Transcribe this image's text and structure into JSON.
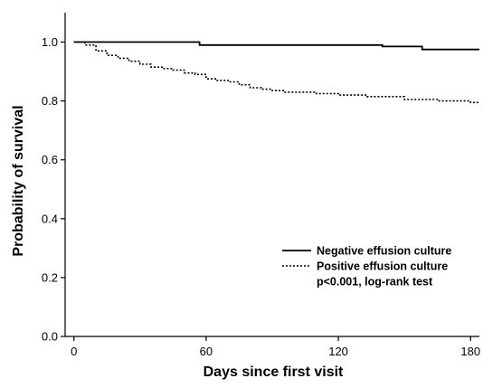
{
  "chart_data": {
    "type": "line",
    "xlabel": "Days since first visit",
    "ylabel": "Probability of survival",
    "xlim": [
      -4,
      184
    ],
    "ylim": [
      0.0,
      1.1
    ],
    "xticks": [
      "0",
      "60",
      "120",
      "180"
    ],
    "yticks": [
      "0.0",
      "0.2",
      "0.4",
      "0.6",
      "0.8",
      "1.0"
    ],
    "grid": false,
    "legend_position": "lower-right",
    "series": [
      {
        "name": "Negative effusion culture",
        "style": "solid",
        "color": "#000000",
        "x": [
          0,
          57,
          57,
          140,
          140,
          158,
          158,
          184
        ],
        "y": [
          1.0,
          1.0,
          0.99,
          0.99,
          0.985,
          0.985,
          0.975,
          0.975
        ]
      },
      {
        "name": "Positive effusion culture",
        "style": "dotted",
        "color": "#000000",
        "x": [
          0,
          5,
          5,
          10,
          10,
          15,
          15,
          20,
          20,
          25,
          25,
          30,
          30,
          35,
          35,
          40,
          40,
          45,
          45,
          50,
          50,
          55,
          55,
          60,
          60,
          65,
          65,
          70,
          70,
          75,
          75,
          80,
          80,
          85,
          85,
          90,
          90,
          95,
          95,
          110,
          110,
          120,
          120,
          125,
          125,
          133,
          133,
          140,
          140,
          150,
          150,
          165,
          165,
          180,
          180,
          184
        ],
        "y": [
          1.0,
          1.0,
          0.99,
          0.99,
          0.97,
          0.97,
          0.955,
          0.955,
          0.945,
          0.945,
          0.935,
          0.935,
          0.925,
          0.925,
          0.915,
          0.915,
          0.91,
          0.91,
          0.905,
          0.905,
          0.895,
          0.895,
          0.89,
          0.89,
          0.875,
          0.875,
          0.87,
          0.87,
          0.865,
          0.865,
          0.855,
          0.855,
          0.845,
          0.845,
          0.84,
          0.84,
          0.835,
          0.835,
          0.83,
          0.83,
          0.825,
          0.825,
          0.82,
          0.82,
          0.82,
          0.82,
          0.815,
          0.815,
          0.815,
          0.815,
          0.805,
          0.805,
          0.8,
          0.8,
          0.795,
          0.795
        ]
      }
    ],
    "annotation": "p<0.001, log-rank test"
  }
}
